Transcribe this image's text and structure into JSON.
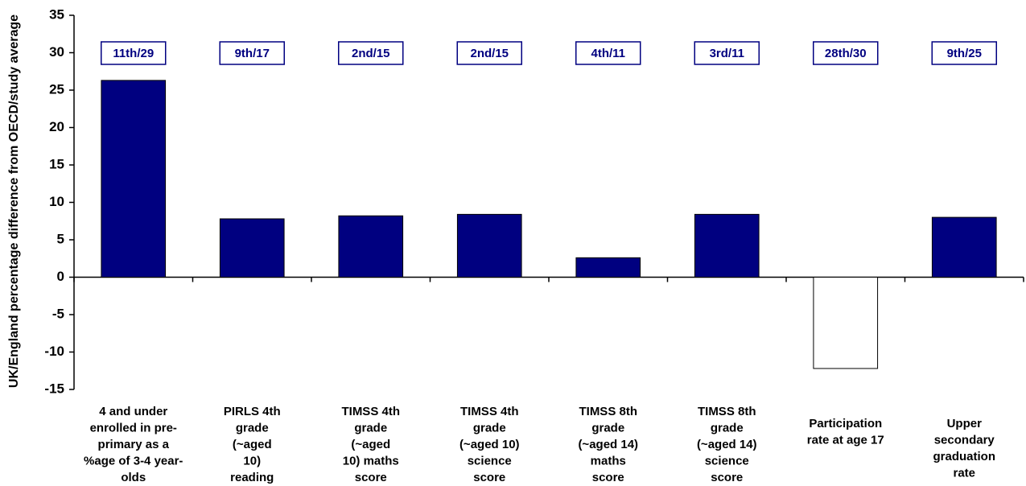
{
  "chart_data": {
    "type": "bar",
    "y_label": "UK/England percentage difference from OECD/study average",
    "categories": [
      [
        "4 and under",
        "enrolled in pre-",
        "primary as a",
        "%age of 3-4 year-",
        "olds"
      ],
      [
        "PIRLS 4th",
        "grade",
        "(~aged",
        "10)",
        "reading"
      ],
      [
        "TIMSS 4th",
        "grade",
        "(~aged",
        "10) maths",
        "score"
      ],
      [
        "TIMSS 4th",
        "grade",
        "(~aged 10)",
        "science",
        "score"
      ],
      [
        "TIMSS 8th",
        "grade",
        "(~aged 14)",
        "maths",
        "score"
      ],
      [
        "TIMSS 8th",
        "grade",
        "(~aged 14)",
        "science",
        "score"
      ],
      [
        "Participation",
        "rate at age 17"
      ],
      [
        "Upper",
        "secondary",
        "graduation",
        "rate"
      ]
    ],
    "values": [
      26.3,
      7.8,
      8.2,
      8.4,
      2.6,
      8.4,
      -12.2,
      8.0
    ],
    "colors": [
      "#000080",
      "#000080",
      "#000080",
      "#000080",
      "#000080",
      "#000080",
      "#ffffff",
      "#000080"
    ],
    "annotations": [
      "11th/29",
      "9th/17",
      "2nd/15",
      "2nd/15",
      "4th/11",
      "3rd/11",
      "28th/30",
      "9th/25"
    ],
    "annotation_color": "#000080",
    "ylim": [
      -15,
      35
    ],
    "yticks": [
      -15,
      -10,
      -5,
      0,
      5,
      10,
      15,
      20,
      25,
      30,
      35
    ]
  }
}
